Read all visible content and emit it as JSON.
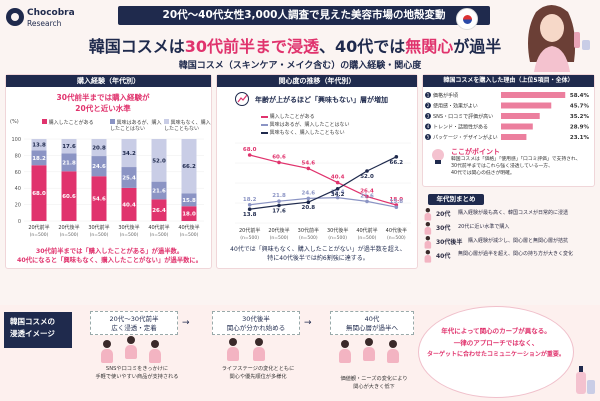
{
  "brand": {
    "name": "Chocobra",
    "sub": "Research"
  },
  "banner": "20代〜40代女性3,000人調査で見えた美容市場の地殻変動",
  "headline": {
    "a": "韓国コスメ",
    "b": "は",
    "c": "30代前半まで浸透",
    "d": "、40代では",
    "e": "無関心",
    "f": "が過半"
  },
  "subtitle": "韓国コスメ（スキンケア・メイク含む）の購入経験・関心度",
  "colors": {
    "navy": "#1f2a4d",
    "pink": "#e0336d",
    "midblue": "#8b94c4",
    "lightblue": "#c9cde6"
  },
  "panel1": {
    "title": "購入経験（年代別）",
    "note_line1": "30代前半までは購入経験が",
    "note_line2": "20代と近い水準",
    "y_unit": "(%)",
    "legend": [
      "購入したことがある",
      "興味はあるが、購入したことはない",
      "興味もなく、購入したこともない"
    ],
    "caption_line1": "30代前半までは「購入したことがある」が過半数。",
    "caption_line2": "40代になると「興味もなく、購入したことがない」が過半数に。"
  },
  "chart_data": [
    {
      "type": "bar",
      "stacked": true,
      "title": "購入経験（年代別）",
      "categories": [
        "20代前半",
        "20代後半",
        "30代前半",
        "30代後半",
        "40代前半",
        "40代後半"
      ],
      "sample": [
        "(n=500)",
        "(n=500)",
        "(n=500)",
        "(n=500)",
        "(n=500)",
        "(n=500)"
      ],
      "ylim": [
        0,
        100
      ],
      "yticks": [
        0,
        20,
        40,
        60,
        80,
        100
      ],
      "series": [
        {
          "name": "購入したことがある",
          "color": "#e0336d",
          "values": [
            68.0,
            60.6,
            54.6,
            40.4,
            26.4,
            18.0
          ]
        },
        {
          "name": "興味はあるが、購入したことはない",
          "color": "#8b94c4",
          "values": [
            18.2,
            21.8,
            24.6,
            25.4,
            21.6,
            15.8
          ]
        },
        {
          "name": "興味もなく、購入したこともない",
          "color": "#c9cde6",
          "values": [
            13.8,
            17.6,
            20.8,
            34.2,
            52.0,
            66.2
          ]
        }
      ]
    },
    {
      "type": "line",
      "title": "関心度の推移（年代別）",
      "categories": [
        "20代前半",
        "20代後半",
        "30代前半",
        "30代後半",
        "40代前半",
        "40代後半"
      ],
      "sample": [
        "(n=500)",
        "(n=500)",
        "(n=500)",
        "(n=500)",
        "(n=500)",
        "(n=500)"
      ],
      "ylim": [
        0,
        80
      ],
      "yticks": [
        0,
        20,
        40,
        60,
        80
      ],
      "series": [
        {
          "name": "購入したことがある",
          "color": "#e0336d",
          "values": [
            68.0,
            60.6,
            54.6,
            40.4,
            26.4,
            18.0
          ]
        },
        {
          "name": "興味はあるが、購入したことはない",
          "color": "#8b94c4",
          "values": [
            18.2,
            21.8,
            24.6,
            25.4,
            21.6,
            15.8
          ]
        },
        {
          "name": "興味もなく、購入したこともない",
          "color": "#1f2a4d",
          "values": [
            13.8,
            17.6,
            20.8,
            34.2,
            52.0,
            66.2
          ]
        }
      ]
    },
    {
      "type": "bar",
      "orientation": "horizontal",
      "title": "韓国コスメを購入した理由（上位5項目・全体）",
      "categories": [
        "価格が手頃",
        "使用感・効果がよい",
        "SNS・口コミで評価が高い",
        "トレンド・話題性がある",
        "パッケージ・デザインがよい"
      ],
      "values": [
        58.4,
        45.7,
        35.2,
        28.9,
        23.1
      ],
      "unit": "%",
      "xlim": [
        0,
        60
      ]
    }
  ],
  "panel2": {
    "title": "関心度の推移（年代別）",
    "note": "年齢が上がるほど「興味もない」層が増加",
    "legend": [
      "購入したことがある",
      "興味はあるが、購入したことはない",
      "興味もなく、購入したこともない"
    ],
    "caption_line1": "40代では「興味もなく、購入したことがない」が過半数を超え、",
    "caption_line2": "特に40代後半では約6割強に達する。"
  },
  "panel3": {
    "title": "韓国コスメを購入した理由（上位5項目・全体）",
    "point_title": "ここがポイント",
    "point_lines": [
      "韓国コスメは「価格」「使用感」「口コミ評価」で支持され、",
      "30代前半まではこれら強く浸透している一方、",
      "40代では関心の低さが明確。"
    ]
  },
  "panel4": {
    "title": "年代別まとめ"
  },
  "summary": [
    {
      "age": "20代",
      "text": "購入経験が最も高く、韓国コスメが日常的に浸透"
    },
    {
      "age": "30代",
      "text": "20代に近い水準で購入"
    },
    {
      "age": "30代後半",
      "text": "購入経験が減少し、関心層と無関心層が拮抗"
    },
    {
      "age": "40代",
      "text": "無関心層が過半を超え、関心の持ち方が大きく変化"
    }
  ],
  "bottom": {
    "label_line1": "韓国コスメの",
    "label_line2": "浸透イメージ",
    "stages": [
      {
        "head": "20代〜30代前半",
        "sub": "広く浸透・定着",
        "desc1": "SNSや口コミをきっかけに",
        "desc2": "手軽で使いやすい商品が支持される"
      },
      {
        "head": "30代後半",
        "sub": "関心が分かれ始める",
        "desc1": "ライフステージの変化とともに",
        "desc2": "関心や優先順位が多様化"
      },
      {
        "head": "40代",
        "sub": "無関心層が過半へ",
        "desc1": "価値観・ニーズの変化により",
        "desc2": "関心が大きく低下"
      }
    ],
    "bubble": [
      "年代によって関心のカーブが異なる。",
      "一律のアプローチではなく、",
      "ターゲットに合わせたコミュニケーションが重要。"
    ]
  }
}
